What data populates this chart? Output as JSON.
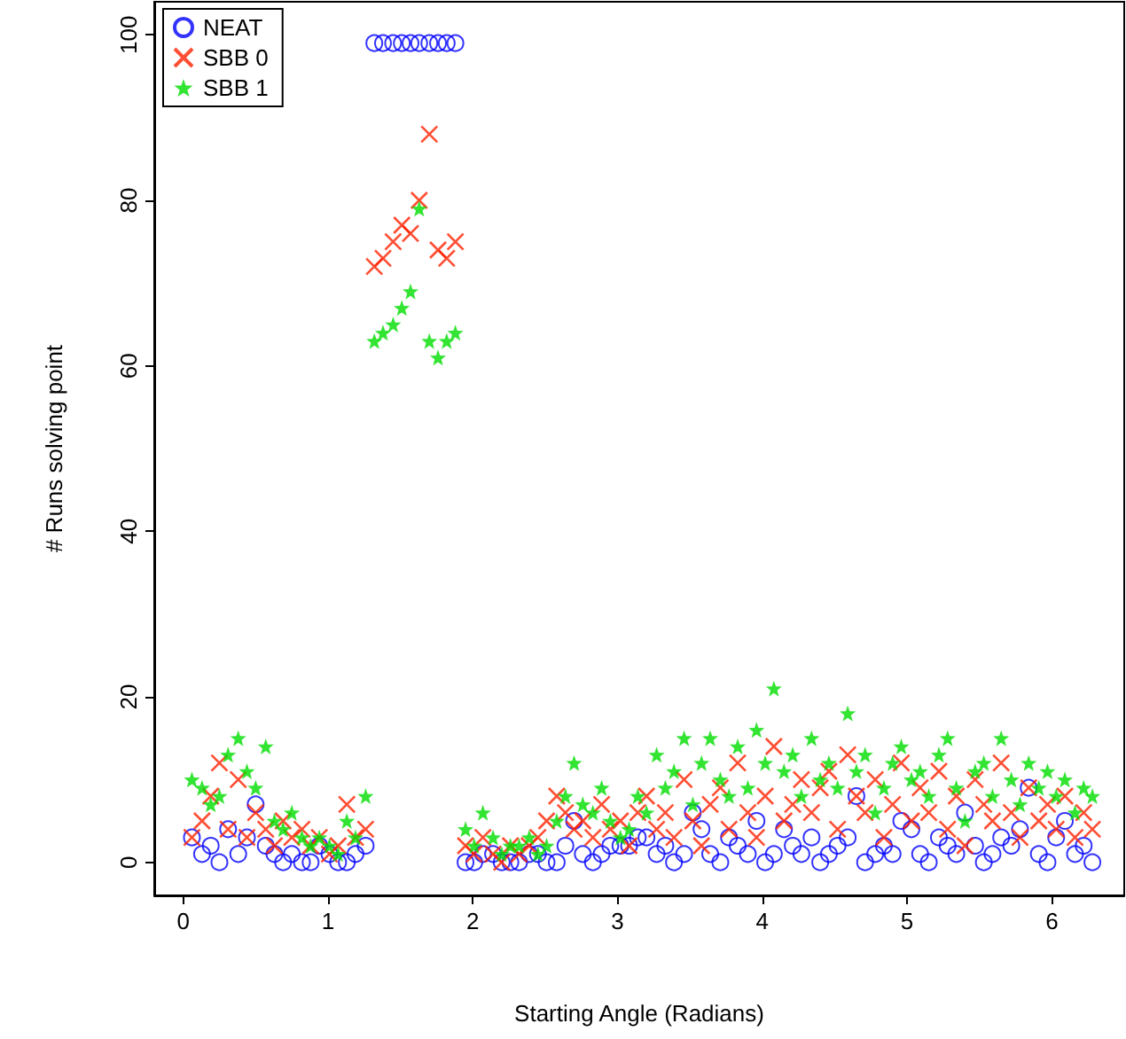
{
  "chart_data": {
    "type": "scatter",
    "xlabel": "Starting Angle (Radians)",
    "ylabel": "# Runs solving point",
    "x": [
      0.06,
      0.13,
      0.19,
      0.25,
      0.31,
      0.38,
      0.44,
      0.5,
      0.57,
      0.63,
      0.69,
      0.75,
      0.82,
      0.88,
      0.94,
      1.01,
      1.07,
      1.13,
      1.19,
      1.26,
      1.32,
      1.38,
      1.45,
      1.51,
      1.57,
      1.63,
      1.7,
      1.76,
      1.82,
      1.88,
      1.95,
      2.01,
      2.07,
      2.14,
      2.2,
      2.26,
      2.32,
      2.39,
      2.45,
      2.51,
      2.58,
      2.64,
      2.7,
      2.76,
      2.83,
      2.89,
      2.95,
      3.02,
      3.08,
      3.14,
      3.2,
      3.27,
      3.33,
      3.39,
      3.46,
      3.52,
      3.58,
      3.64,
      3.71,
      3.77,
      3.83,
      3.9,
      3.96,
      4.02,
      4.08,
      4.15,
      4.21,
      4.27,
      4.34,
      4.4,
      4.46,
      4.52,
      4.59,
      4.65,
      4.71,
      4.78,
      4.84,
      4.9,
      4.96,
      5.03,
      5.09,
      5.15,
      5.22,
      5.28,
      5.34,
      5.4,
      5.47,
      5.53,
      5.59,
      5.65,
      5.72,
      5.78,
      5.84,
      5.91,
      5.97,
      6.03,
      6.09,
      6.16,
      6.22,
      6.28
    ],
    "series": [
      {
        "name": "NEAT",
        "color": "#0000ff",
        "marker": "circle",
        "values": [
          3,
          1,
          2,
          0,
          4,
          1,
          3,
          7,
          2,
          1,
          0,
          1,
          0,
          0,
          2,
          1,
          0,
          0,
          1,
          2,
          99,
          99,
          99,
          99,
          99,
          99,
          99,
          99,
          99,
          99,
          0,
          0,
          1,
          1,
          0,
          0,
          0,
          1,
          1,
          0,
          0,
          2,
          5,
          1,
          0,
          1,
          2,
          2,
          2,
          3,
          3,
          1,
          2,
          0,
          1,
          6,
          4,
          1,
          0,
          3,
          2,
          1,
          5,
          0,
          1,
          4,
          2,
          1,
          3,
          0,
          1,
          2,
          3,
          8,
          0,
          1,
          2,
          1,
          5,
          4,
          1,
          0,
          3,
          2,
          1,
          6,
          2,
          0,
          1,
          3,
          2,
          4,
          9,
          1,
          0,
          3,
          5,
          1,
          2,
          0
        ]
      },
      {
        "name": "SBB 0",
        "color": "#ff2200",
        "marker": "cross",
        "values": [
          3,
          5,
          8,
          12,
          4,
          10,
          3,
          6,
          4,
          2,
          5,
          3,
          4,
          2,
          3,
          1,
          2,
          7,
          3,
          4,
          72,
          73,
          75,
          77,
          76,
          80,
          88,
          74,
          73,
          75,
          2,
          1,
          3,
          1,
          0,
          2,
          1,
          2,
          3,
          5,
          8,
          6,
          4,
          5,
          3,
          7,
          4,
          5,
          2,
          6,
          8,
          4,
          6,
          3,
          10,
          5,
          2,
          7,
          9,
          4,
          12,
          6,
          3,
          8,
          14,
          5,
          7,
          10,
          6,
          9,
          11,
          4,
          13,
          8,
          6,
          10,
          3,
          7,
          12,
          5,
          9,
          6,
          11,
          4,
          8,
          2,
          10,
          7,
          5,
          12,
          6,
          3,
          9,
          5,
          7,
          4,
          8,
          3,
          6,
          4
        ]
      },
      {
        "name": "SBB 1",
        "color": "#00dd00",
        "marker": "star",
        "values": [
          10,
          9,
          7,
          8,
          13,
          15,
          11,
          9,
          14,
          5,
          4,
          6,
          3,
          2,
          3,
          2,
          1,
          5,
          3,
          8,
          63,
          64,
          65,
          67,
          69,
          79,
          63,
          61,
          63,
          64,
          4,
          2,
          6,
          3,
          1,
          2,
          2,
          3,
          1,
          2,
          5,
          8,
          12,
          7,
          6,
          9,
          5,
          3,
          4,
          8,
          6,
          13,
          9,
          11,
          15,
          7,
          12,
          15,
          10,
          8,
          14,
          9,
          16,
          12,
          21,
          11,
          13,
          8,
          15,
          10,
          12,
          9,
          18,
          11,
          13,
          6,
          9,
          12,
          14,
          10,
          11,
          8,
          13,
          15,
          9,
          5,
          11,
          12,
          8,
          15,
          10,
          7,
          12,
          9,
          11,
          8,
          10,
          6,
          9,
          8
        ]
      }
    ],
    "xlim": [
      -0.2,
      6.5
    ],
    "xticks": [
      0,
      1,
      2,
      3,
      4,
      5,
      6
    ],
    "ylim": [
      -4,
      104
    ],
    "yticks": [
      0,
      20,
      40,
      60,
      80,
      100
    ],
    "grid": false,
    "legend": "top left"
  }
}
